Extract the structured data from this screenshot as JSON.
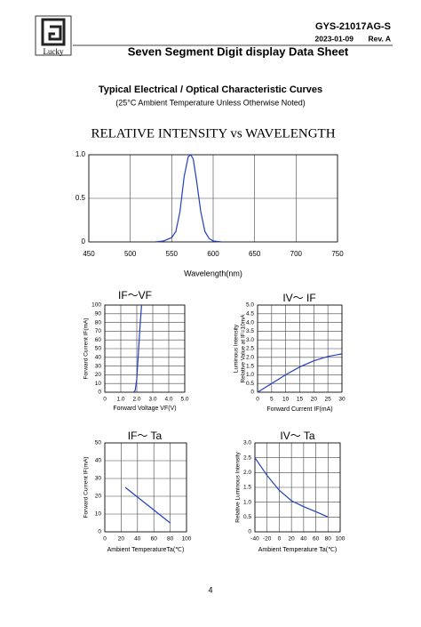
{
  "header": {
    "logo_text": "Lucky",
    "part_number": "GYS-21017AG-S",
    "date": "2023-01-09",
    "revision": "Rev. A",
    "title": "Seven Segment Digit display Data Sheet"
  },
  "section": {
    "title": "Typical Electrical / Optical Characteristic Curves",
    "subtitle": "(25°C Ambient Temperature Unless Otherwise Noted)"
  },
  "chart_data": [
    {
      "type": "line",
      "title": "RELATIVE INTENSITY vs WAVELENGTH",
      "x_label": "Wavelength(nm)",
      "xlim": [
        450,
        750
      ],
      "xticks": [
        450,
        500,
        550,
        600,
        650,
        700,
        750
      ],
      "ylim": [
        0,
        1
      ],
      "yticks": [
        0,
        0.5,
        {
          "value": 1,
          "label": "1.0"
        }
      ],
      "grid": true,
      "color": "#1f3fbf",
      "x": [
        530,
        540,
        550,
        555,
        560,
        565,
        570,
        573,
        576,
        580,
        585,
        590,
        595,
        600,
        610
      ],
      "values": [
        0,
        0.01,
        0.05,
        0.12,
        0.35,
        0.75,
        0.98,
        1.0,
        0.95,
        0.7,
        0.35,
        0.12,
        0.04,
        0.01,
        0
      ]
    },
    {
      "type": "line",
      "title": "IF～VF",
      "x_label": "Forward Voltage VF(V)",
      "y_label": "Forward Current IF(mA)",
      "xlim": [
        0,
        5
      ],
      "xticks": [
        0,
        {
          "value": 1,
          "label": "1.0"
        },
        {
          "value": 2,
          "label": "2.0"
        },
        {
          "value": 3,
          "label": "3.0"
        },
        {
          "value": 4,
          "label": "4.0"
        },
        {
          "value": 5,
          "label": "5.0"
        }
      ],
      "ylim": [
        0,
        100
      ],
      "yticks": [
        0,
        10,
        20,
        30,
        40,
        50,
        60,
        70,
        80,
        90,
        100
      ],
      "grid": true,
      "color": "#1f3fbf",
      "x": [
        1.8,
        1.9,
        2.0,
        2.1,
        2.2,
        2.3
      ],
      "values": [
        0,
        2,
        15,
        45,
        75,
        100
      ]
    },
    {
      "type": "line",
      "title": "IV～ IF",
      "x_label": "Forward Current IF(mA)",
      "y_label": [
        "Luminous Intensity",
        "Relative Value at IF=10mA"
      ],
      "xlim": [
        0,
        30
      ],
      "xticks": [
        0,
        5,
        10,
        15,
        20,
        25,
        30
      ],
      "ylim": [
        0,
        5
      ],
      "yticks": [
        0,
        0.5,
        {
          "value": 1,
          "label": "1.0"
        },
        1.5,
        {
          "value": 2,
          "label": "2.0"
        },
        2.5,
        {
          "value": 3,
          "label": "3.0"
        },
        3.5,
        {
          "value": 4,
          "label": "4.0"
        },
        4.5,
        {
          "value": 5,
          "label": "5.0"
        }
      ],
      "grid": true,
      "color": "#1f3fbf",
      "x": [
        0,
        5,
        10,
        15,
        20,
        25,
        30
      ],
      "values": [
        0,
        0.5,
        1.0,
        1.45,
        1.8,
        2.05,
        2.2
      ]
    },
    {
      "type": "line",
      "title": "IF～ Ta",
      "x_label": "Ambient TemperatureTa(℃)",
      "y_label": "Forward Current IF(mA)",
      "xlim": [
        0,
        100
      ],
      "xticks": [
        0,
        20,
        40,
        60,
        80,
        100
      ],
      "ylim": [
        0,
        50
      ],
      "yticks": [
        0,
        10,
        20,
        30,
        40,
        50
      ],
      "grid": true,
      "color": "#1f3fbf",
      "x": [
        25,
        80
      ],
      "values": [
        25,
        5
      ]
    },
    {
      "type": "line",
      "title": "IV～ Ta",
      "x_label": "Ambient Temperature Ta(℃)",
      "y_label": "Relative Luminous Intensity",
      "xlim": [
        -40,
        100
      ],
      "xticks": [
        -40,
        -20,
        0,
        20,
        40,
        60,
        80,
        100
      ],
      "ylim": [
        0,
        3
      ],
      "yticks": [
        0,
        0.5,
        {
          "value": 1,
          "label": "1.0"
        },
        1.5,
        {
          "value": 2,
          "label": "2.0"
        },
        2.5,
        {
          "value": 3,
          "label": "3.0"
        }
      ],
      "grid": true,
      "color": "#1f3fbf",
      "x": [
        -40,
        -20,
        0,
        20,
        40,
        60,
        80
      ],
      "values": [
        2.5,
        1.9,
        1.4,
        1.05,
        0.85,
        0.68,
        0.5
      ]
    }
  ],
  "page_number": "4"
}
